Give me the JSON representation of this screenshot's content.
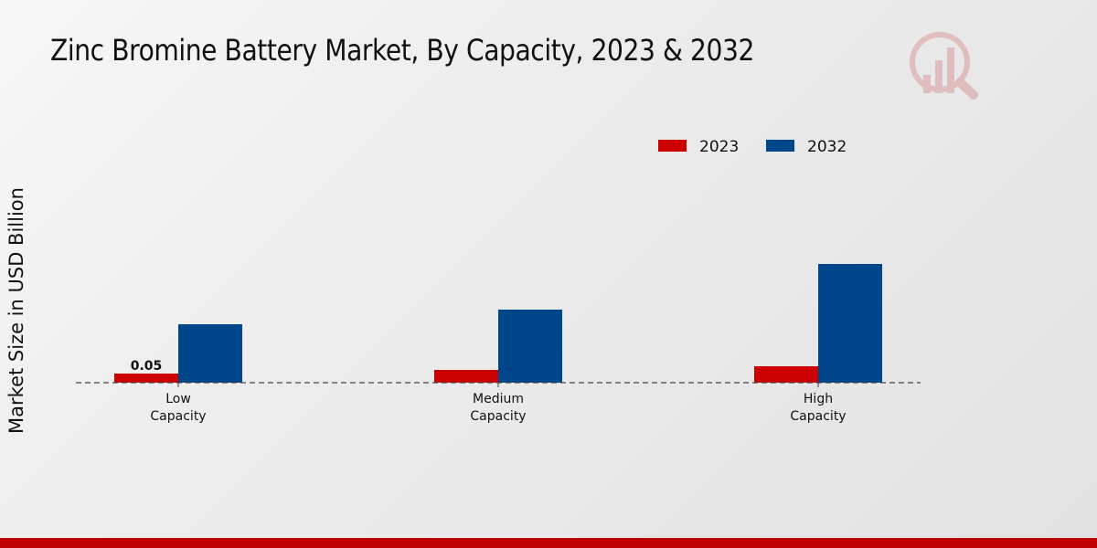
{
  "chart_data": {
    "type": "bar",
    "title": "Zinc Bromine Battery Market, By Capacity, 2023 & 2032",
    "xlabel": "",
    "ylabel": "Market Size in USD Billion",
    "categories": [
      [
        "Low",
        "Capacity"
      ],
      [
        "Medium",
        "Capacity"
      ],
      [
        "High",
        "Capacity"
      ]
    ],
    "series": [
      {
        "name": "2023",
        "color": "#cc0000",
        "values": [
          0.05,
          0.07,
          0.09
        ]
      },
      {
        "name": "2032",
        "color": "#00468b",
        "values": [
          0.32,
          0.4,
          0.65
        ]
      }
    ],
    "data_labels": [
      {
        "series": 0,
        "index": 0,
        "text": "0.05"
      }
    ],
    "ylim": [
      0,
      0.8
    ],
    "grid": false,
    "legend_position": "top-right"
  }
}
